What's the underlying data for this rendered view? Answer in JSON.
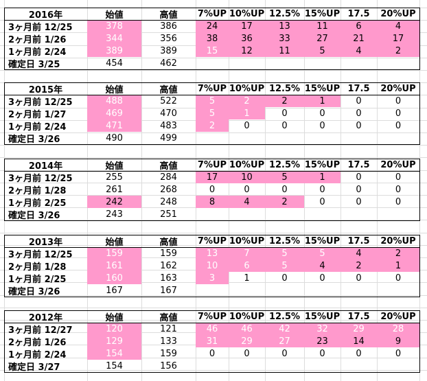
{
  "columns": [
    "始値",
    "高値",
    "7%UP",
    "10%UP",
    "12.5%",
    "15%UP",
    "17.5",
    "20%UP"
  ],
  "colors": {
    "highlight": "#ff99cc",
    "highlight_text": "#ffffff",
    "grid": "#dcdcdc",
    "border": "#000000"
  },
  "blocks": [
    {
      "year": "2016年",
      "rows": [
        {
          "label": "3ヶ月前 12/25",
          "values": [
            "378",
            "386",
            "24",
            "17",
            "13",
            "11",
            "6",
            "4"
          ],
          "pink": [
            true,
            false,
            true,
            true,
            true,
            true,
            true,
            true
          ],
          "whiteText": [
            true,
            false,
            false,
            false,
            false,
            false,
            false,
            false
          ]
        },
        {
          "label": "2ヶ月前 1/26",
          "values": [
            "344",
            "356",
            "38",
            "36",
            "33",
            "27",
            "21",
            "17"
          ],
          "pink": [
            true,
            false,
            true,
            true,
            true,
            true,
            true,
            true
          ],
          "whiteText": [
            true,
            false,
            false,
            false,
            false,
            false,
            false,
            false
          ]
        },
        {
          "label": "1ヶ月前 2/24",
          "values": [
            "389",
            "389",
            "15",
            "12",
            "11",
            "5",
            "4",
            "2"
          ],
          "pink": [
            true,
            false,
            true,
            true,
            true,
            true,
            true,
            true
          ],
          "whiteText": [
            true,
            false,
            true,
            false,
            false,
            false,
            false,
            false
          ]
        },
        {
          "label": "確定日 3/25",
          "values": [
            "454",
            "462",
            "",
            "",
            "",
            "",
            "",
            ""
          ],
          "pink": [
            false,
            false,
            false,
            false,
            false,
            false,
            false,
            false
          ],
          "whiteText": [
            false,
            false,
            false,
            false,
            false,
            false,
            false,
            false
          ]
        }
      ]
    },
    {
      "year": "2015年",
      "rows": [
        {
          "label": "3ヶ月前 12/25",
          "values": [
            "488",
            "522",
            "5",
            "2",
            "2",
            "1",
            "0",
            "0"
          ],
          "pink": [
            true,
            false,
            true,
            true,
            true,
            true,
            false,
            false
          ],
          "whiteText": [
            true,
            false,
            true,
            true,
            false,
            false,
            false,
            false
          ]
        },
        {
          "label": "2ヶ月前 1/27",
          "values": [
            "469",
            "470",
            "5",
            "1",
            "0",
            "0",
            "0",
            "0"
          ],
          "pink": [
            true,
            false,
            true,
            true,
            false,
            false,
            false,
            false
          ],
          "whiteText": [
            true,
            false,
            true,
            true,
            false,
            false,
            false,
            false
          ]
        },
        {
          "label": "1ヶ月前 2/24",
          "values": [
            "471",
            "483",
            "2",
            "0",
            "0",
            "0",
            "0",
            "0"
          ],
          "pink": [
            true,
            false,
            true,
            false,
            false,
            false,
            false,
            false
          ],
          "whiteText": [
            true,
            false,
            true,
            false,
            false,
            false,
            false,
            false
          ]
        },
        {
          "label": "確定日 3/26",
          "values": [
            "490",
            "499",
            "",
            "",
            "",
            "",
            "",
            ""
          ],
          "pink": [
            false,
            false,
            false,
            false,
            false,
            false,
            false,
            false
          ],
          "whiteText": [
            false,
            false,
            false,
            false,
            false,
            false,
            false,
            false
          ]
        }
      ]
    },
    {
      "year": "2014年",
      "rows": [
        {
          "label": "3ヶ月前 12/25",
          "values": [
            "255",
            "284",
            "17",
            "10",
            "5",
            "1",
            "0",
            "0"
          ],
          "pink": [
            false,
            false,
            true,
            true,
            true,
            true,
            false,
            false
          ],
          "whiteText": [
            false,
            false,
            false,
            false,
            false,
            false,
            false,
            false
          ]
        },
        {
          "label": "2ヶ月前 1/28",
          "values": [
            "261",
            "268",
            "0",
            "0",
            "0",
            "0",
            "0",
            "0"
          ],
          "pink": [
            false,
            false,
            false,
            false,
            false,
            false,
            false,
            false
          ],
          "whiteText": [
            false,
            false,
            false,
            false,
            false,
            false,
            false,
            false
          ]
        },
        {
          "label": "1ヶ月前 2/25",
          "values": [
            "242",
            "248",
            "8",
            "4",
            "2",
            "0",
            "0",
            "0"
          ],
          "pink": [
            true,
            false,
            true,
            true,
            true,
            false,
            false,
            false
          ],
          "whiteText": [
            false,
            false,
            false,
            false,
            false,
            false,
            false,
            false
          ]
        },
        {
          "label": "確定日 3/26",
          "values": [
            "243",
            "251",
            "",
            "",
            "",
            "",
            "",
            ""
          ],
          "pink": [
            false,
            false,
            false,
            false,
            false,
            false,
            false,
            false
          ],
          "whiteText": [
            false,
            false,
            false,
            false,
            false,
            false,
            false,
            false
          ]
        }
      ]
    },
    {
      "year": "2013年",
      "rows": [
        {
          "label": "3ヶ月前 12/25",
          "values": [
            "159",
            "159",
            "13",
            "7",
            "5",
            "5",
            "4",
            "2"
          ],
          "pink": [
            true,
            false,
            true,
            true,
            true,
            true,
            true,
            true
          ],
          "whiteText": [
            true,
            false,
            true,
            true,
            true,
            true,
            false,
            false
          ]
        },
        {
          "label": "2ヶ月前 1/28",
          "values": [
            "161",
            "162",
            "10",
            "6",
            "5",
            "4",
            "2",
            "1"
          ],
          "pink": [
            true,
            false,
            true,
            true,
            true,
            true,
            true,
            true
          ],
          "whiteText": [
            true,
            false,
            true,
            true,
            true,
            false,
            false,
            false
          ]
        },
        {
          "label": "1ヶ月前 2/25",
          "values": [
            "160",
            "163",
            "3",
            "1",
            "0",
            "0",
            "0",
            "0"
          ],
          "pink": [
            true,
            false,
            true,
            false,
            false,
            false,
            false,
            false
          ],
          "whiteText": [
            true,
            false,
            true,
            false,
            false,
            false,
            false,
            false
          ]
        },
        {
          "label": "確定日 3/26",
          "values": [
            "167",
            "167",
            "",
            "",
            "",
            "",
            "",
            ""
          ],
          "pink": [
            false,
            false,
            false,
            false,
            false,
            false,
            false,
            false
          ],
          "whiteText": [
            false,
            false,
            false,
            false,
            false,
            false,
            false,
            false
          ]
        }
      ]
    },
    {
      "year": "2012年",
      "rows": [
        {
          "label": "3ヶ月前 12/27",
          "values": [
            "120",
            "121",
            "46",
            "46",
            "42",
            "32",
            "29",
            "28"
          ],
          "pink": [
            true,
            false,
            true,
            true,
            true,
            true,
            true,
            true
          ],
          "whiteText": [
            true,
            false,
            true,
            true,
            true,
            true,
            true,
            true
          ]
        },
        {
          "label": "2ヶ月前 1/26",
          "values": [
            "129",
            "133",
            "31",
            "29",
            "27",
            "23",
            "14",
            "9"
          ],
          "pink": [
            true,
            false,
            true,
            true,
            true,
            true,
            true,
            true
          ],
          "whiteText": [
            true,
            false,
            true,
            true,
            true,
            false,
            false,
            false
          ]
        },
        {
          "label": "1ヶ月前 2/24",
          "values": [
            "154",
            "159",
            "0",
            "0",
            "0",
            "0",
            "0",
            "0"
          ],
          "pink": [
            true,
            false,
            false,
            false,
            false,
            false,
            false,
            false
          ],
          "whiteText": [
            true,
            false,
            false,
            false,
            false,
            false,
            false,
            false
          ]
        },
        {
          "label": "確定日 3/27",
          "values": [
            "154",
            "156",
            "",
            "",
            "",
            "",
            "",
            ""
          ],
          "pink": [
            false,
            false,
            false,
            false,
            false,
            false,
            false,
            false
          ],
          "whiteText": [
            false,
            false,
            false,
            false,
            false,
            false,
            false,
            false
          ]
        }
      ]
    }
  ]
}
